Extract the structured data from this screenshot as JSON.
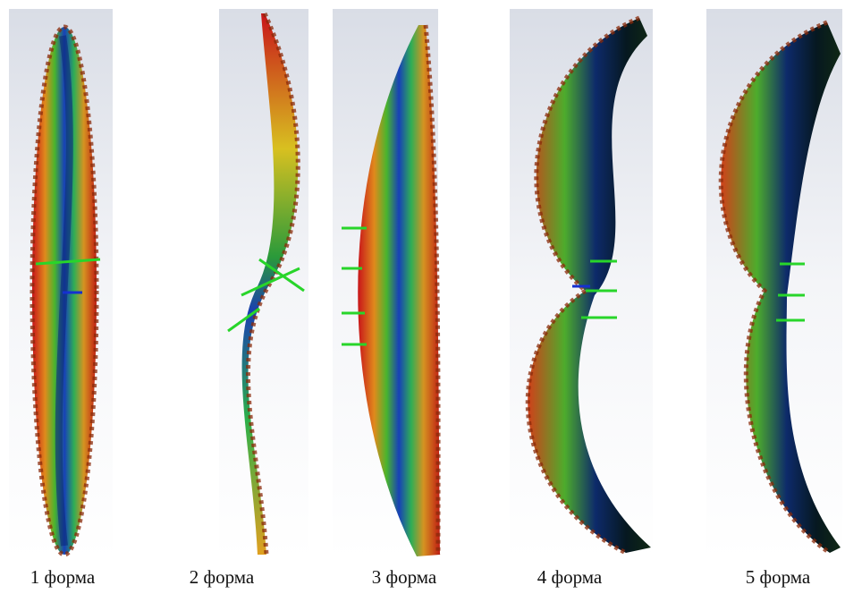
{
  "captions": [
    "1 форма",
    "2 форма",
    "3 форма",
    "4 форма",
    "5 форма"
  ]
}
